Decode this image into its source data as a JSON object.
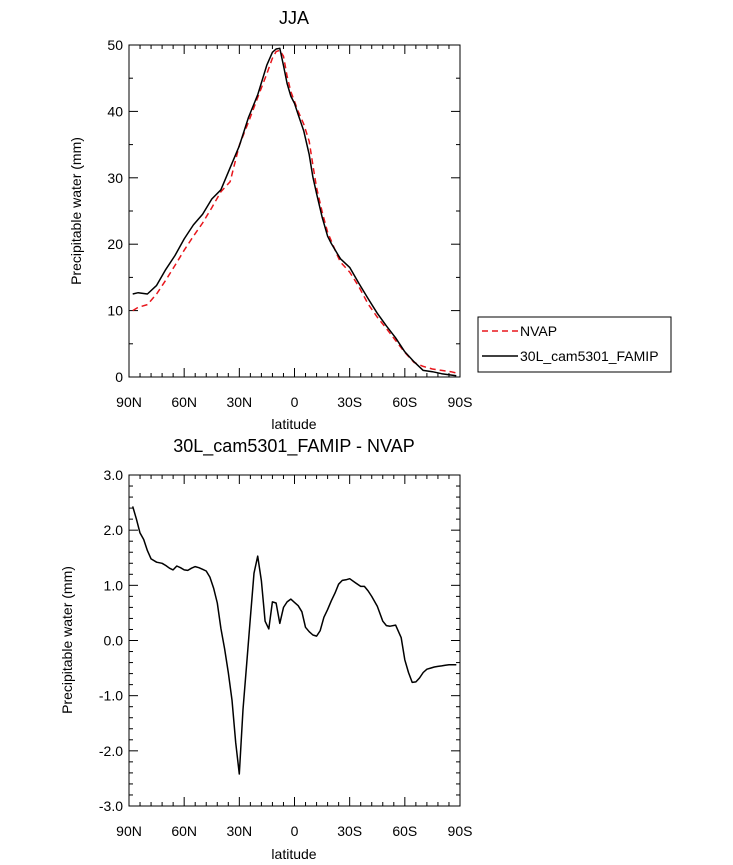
{
  "chart_data": [
    {
      "type": "line",
      "title": "JJA",
      "xlabel": "latitude",
      "ylabel": "Precipitable water (mm)",
      "xlim": [
        -90,
        90
      ],
      "ylim": [
        0,
        50
      ],
      "x_ticks": [
        {
          "v": -90,
          "label": "90N"
        },
        {
          "v": -60,
          "label": "60N"
        },
        {
          "v": -30,
          "label": "30N"
        },
        {
          "v": 0,
          "label": "0"
        },
        {
          "v": 30,
          "label": "30S"
        },
        {
          "v": 60,
          "label": "60S"
        },
        {
          "v": 90,
          "label": "90S"
        }
      ],
      "y_ticks": [
        {
          "v": 0,
          "label": "0"
        },
        {
          "v": 10,
          "label": "10"
        },
        {
          "v": 20,
          "label": "20"
        },
        {
          "v": 30,
          "label": "30"
        },
        {
          "v": 40,
          "label": "40"
        },
        {
          "v": 50,
          "label": "50"
        }
      ],
      "legend": {
        "position": "right",
        "entries": [
          "NVAP",
          "30L_cam5301_FAMIP"
        ]
      },
      "series": [
        {
          "name": "NVAP",
          "color": "#e8161c",
          "dash": true,
          "x": [
            -88,
            -85,
            -80,
            -75,
            -70,
            -65,
            -60,
            -55,
            -50,
            -45,
            -40,
            -35,
            -30,
            -25,
            -20,
            -15,
            -12,
            -10,
            -8,
            -6,
            -4,
            -2,
            0,
            2,
            5,
            8,
            10,
            12,
            15,
            18,
            20,
            23,
            25,
            30,
            35,
            40,
            45,
            50,
            55,
            60,
            65,
            70,
            75,
            80,
            85,
            88
          ],
          "y": [
            10,
            10.5,
            10.9,
            12.5,
            14.6,
            16.8,
            19.1,
            21.2,
            23.2,
            25.5,
            27.9,
            29.4,
            34.9,
            38.4,
            42.1,
            45.7,
            48,
            49,
            49.2,
            48.3,
            45.3,
            43,
            41.5,
            40,
            38.1,
            35.5,
            31.9,
            28.5,
            24.9,
            21.8,
            20.5,
            18.5,
            17.3,
            15.8,
            13.6,
            11,
            9,
            7.3,
            5.5,
            3.7,
            2.2,
            1.6,
            1.2,
            1,
            0.8,
            0.6
          ]
        },
        {
          "name": "30L_cam5301_FAMIP",
          "color": "#000000",
          "dash": false,
          "x": [
            -88,
            -85,
            -80,
            -75,
            -70,
            -65,
            -60,
            -55,
            -50,
            -45,
            -40,
            -35,
            -30,
            -25,
            -20,
            -15,
            -12,
            -10,
            -8,
            -6,
            -4,
            -2,
            0,
            2,
            5,
            8,
            10,
            12,
            15,
            18,
            20,
            23,
            25,
            30,
            35,
            40,
            45,
            50,
            55,
            60,
            65,
            70,
            75,
            80,
            85,
            88
          ],
          "y": [
            12.5,
            12.7,
            12.5,
            13.8,
            16.2,
            18.3,
            20.8,
            22.9,
            24.5,
            26.8,
            28.2,
            31.5,
            34.8,
            39.1,
            42.5,
            47,
            48.9,
            49.4,
            49.5,
            46.9,
            44.2,
            42.3,
            41.2,
            39.5,
            37.1,
            33.5,
            30.1,
            27.6,
            24.1,
            21.2,
            20.1,
            18.7,
            17.8,
            16.5,
            14.1,
            11.8,
            9.6,
            7.7,
            5.9,
            3.8,
            2.3,
            1,
            0.8,
            0.5,
            0.3,
            0.2
          ]
        }
      ]
    },
    {
      "type": "line",
      "title": "30L_cam5301_FAMIP - NVAP",
      "xlabel": "latitude",
      "ylabel": "Precipitable water (mm)",
      "xlim": [
        -90,
        90
      ],
      "ylim": [
        -3,
        3
      ],
      "x_ticks": [
        {
          "v": -90,
          "label": "90N"
        },
        {
          "v": -60,
          "label": "60N"
        },
        {
          "v": -30,
          "label": "30N"
        },
        {
          "v": 0,
          "label": "0"
        },
        {
          "v": 30,
          "label": "30S"
        },
        {
          "v": 60,
          "label": "60S"
        },
        {
          "v": 90,
          "label": "90S"
        }
      ],
      "y_ticks": [
        {
          "v": -3,
          "label": "-3.0"
        },
        {
          "v": -2,
          "label": "-2.0"
        },
        {
          "v": -1,
          "label": "-1.0"
        },
        {
          "v": 0,
          "label": "0.0"
        },
        {
          "v": 1,
          "label": "1.0"
        },
        {
          "v": 2,
          "label": "2.0"
        },
        {
          "v": 3,
          "label": "3.0"
        }
      ],
      "series": [
        {
          "name": "30L_cam5301_FAMIP - NVAP",
          "color": "#000000",
          "dash": false,
          "x": [
            -88,
            -86,
            -84,
            -82,
            -80,
            -78,
            -75,
            -72,
            -70,
            -68,
            -66,
            -64,
            -62,
            -60,
            -58,
            -56,
            -54,
            -52,
            -50,
            -48,
            -46,
            -44,
            -42,
            -40,
            -38,
            -36,
            -34,
            -32,
            -30,
            -28,
            -26,
            -24,
            -22,
            -20,
            -18,
            -16,
            -14,
            -12,
            -10,
            -8,
            -6,
            -4,
            -2,
            0,
            2,
            4,
            6,
            8,
            10,
            12,
            14,
            16,
            18,
            20,
            22,
            24,
            26,
            28,
            30,
            33,
            36,
            38,
            40,
            42,
            45,
            48,
            50,
            52,
            55,
            58,
            60,
            62,
            64,
            66,
            68,
            70,
            72,
            74,
            76,
            78,
            80,
            82,
            84,
            86,
            88
          ],
          "y": [
            2.43,
            2.2,
            1.95,
            1.83,
            1.63,
            1.48,
            1.42,
            1.4,
            1.36,
            1.31,
            1.28,
            1.35,
            1.32,
            1.28,
            1.27,
            1.31,
            1.34,
            1.32,
            1.29,
            1.26,
            1.15,
            0.95,
            0.68,
            0.22,
            -0.15,
            -0.58,
            -1.08,
            -1.85,
            -2.42,
            -1.25,
            -0.42,
            0.42,
            1.22,
            1.53,
            1.08,
            0.35,
            0.21,
            0.7,
            0.68,
            0.31,
            0.6,
            0.7,
            0.75,
            0.69,
            0.63,
            0.52,
            0.24,
            0.16,
            0.1,
            0.08,
            0.18,
            0.42,
            0.56,
            0.72,
            0.86,
            1.02,
            1.09,
            1.1,
            1.12,
            1.05,
            0.98,
            0.98,
            0.9,
            0.8,
            0.62,
            0.35,
            0.27,
            0.26,
            0.28,
            0.05,
            -0.35,
            -0.58,
            -0.76,
            -0.75,
            -0.68,
            -0.58,
            -0.52,
            -0.5,
            -0.48,
            -0.47,
            -0.46,
            -0.45,
            -0.44,
            -0.44,
            -0.44
          ]
        }
      ]
    }
  ]
}
